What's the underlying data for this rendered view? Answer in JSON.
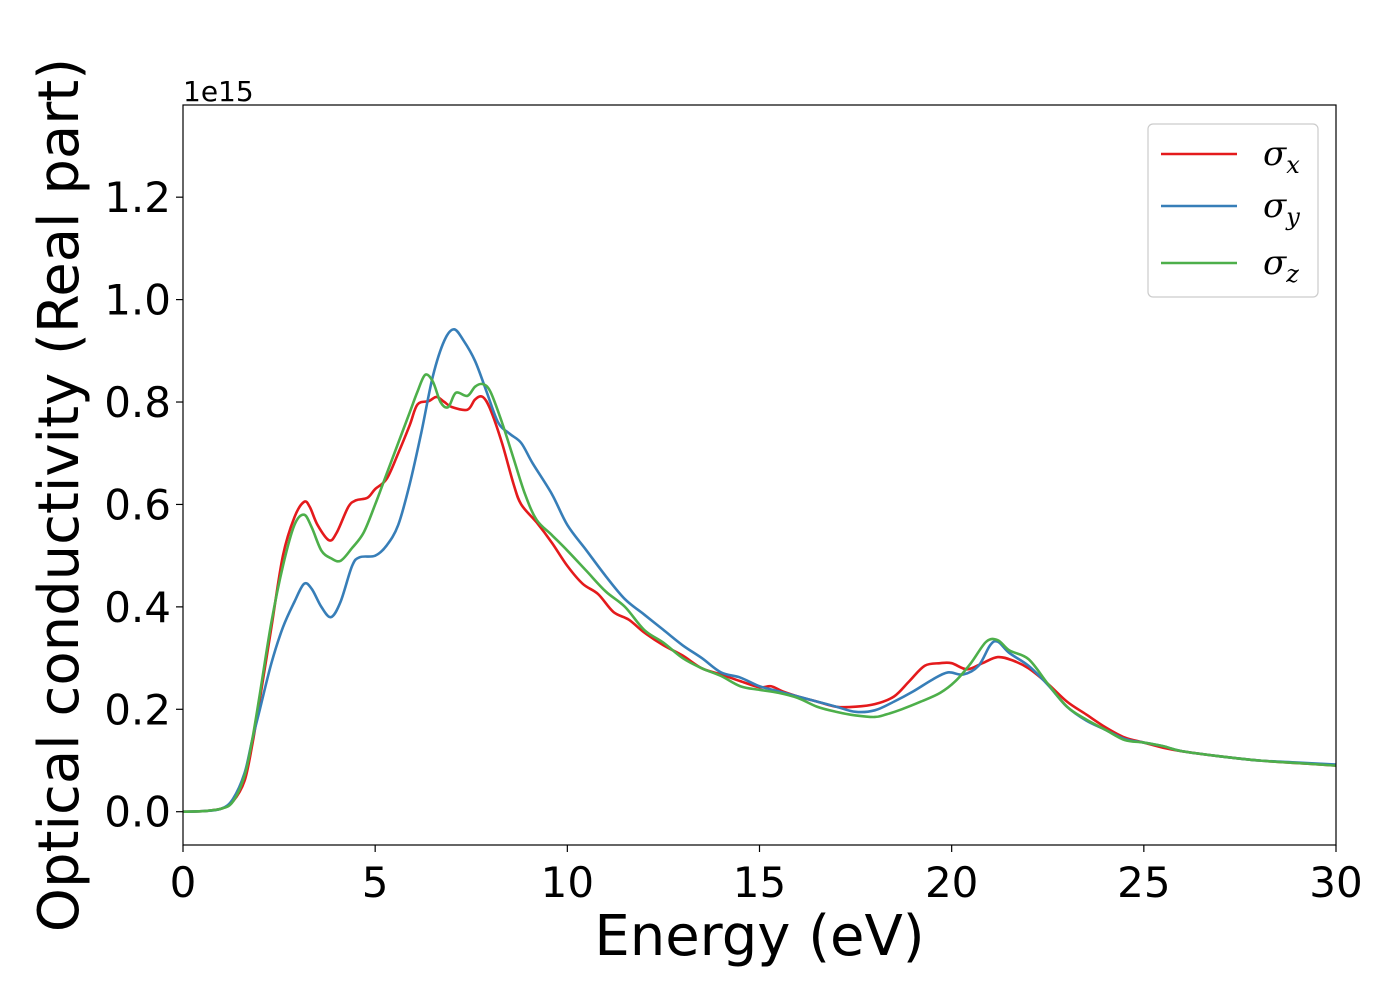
{
  "chart_data": {
    "type": "line",
    "xlabel": "Energy (eV)",
    "ylabel": "Optical conductivity (Real part)",
    "offset_text": "1e15",
    "xlim": [
      0,
      30
    ],
    "ylim": [
      -0.065,
      1.38
    ],
    "xticks": [
      0,
      5,
      10,
      15,
      20,
      25,
      30
    ],
    "xtick_labels": [
      "0",
      "5",
      "10",
      "15",
      "20",
      "25",
      "30"
    ],
    "yticks": [
      0.0,
      0.2,
      0.4,
      0.6,
      0.8,
      1.0,
      1.2
    ],
    "ytick_labels": [
      "0.0",
      "0.2",
      "0.4",
      "0.6",
      "0.8",
      "1.0",
      "1.2"
    ],
    "grid": false,
    "legend_position": "top-right",
    "series": [
      {
        "name": "σx",
        "legend_symbol": "σ",
        "legend_sub": "x",
        "color": "#e41a1c",
        "points": [
          [
            0,
            0
          ],
          [
            0.5,
            0.001
          ],
          [
            1.0,
            0.006
          ],
          [
            1.3,
            0.02
          ],
          [
            1.6,
            0.06
          ],
          [
            1.8,
            0.13
          ],
          [
            2.0,
            0.22
          ],
          [
            2.3,
            0.36
          ],
          [
            2.6,
            0.5
          ],
          [
            2.9,
            0.575
          ],
          [
            3.15,
            0.605
          ],
          [
            3.3,
            0.595
          ],
          [
            3.5,
            0.56
          ],
          [
            3.8,
            0.53
          ],
          [
            4.0,
            0.545
          ],
          [
            4.3,
            0.595
          ],
          [
            4.5,
            0.608
          ],
          [
            4.8,
            0.613
          ],
          [
            5.0,
            0.63
          ],
          [
            5.3,
            0.65
          ],
          [
            5.6,
            0.7
          ],
          [
            5.9,
            0.755
          ],
          [
            6.1,
            0.795
          ],
          [
            6.4,
            0.802
          ],
          [
            6.6,
            0.81
          ],
          [
            6.8,
            0.8
          ],
          [
            7.0,
            0.79
          ],
          [
            7.4,
            0.785
          ],
          [
            7.6,
            0.805
          ],
          [
            7.8,
            0.81
          ],
          [
            8.0,
            0.785
          ],
          [
            8.3,
            0.72
          ],
          [
            8.6,
            0.64
          ],
          [
            8.8,
            0.6
          ],
          [
            9.2,
            0.565
          ],
          [
            9.6,
            0.525
          ],
          [
            10.0,
            0.48
          ],
          [
            10.4,
            0.445
          ],
          [
            10.8,
            0.425
          ],
          [
            11.2,
            0.39
          ],
          [
            11.6,
            0.375
          ],
          [
            12.0,
            0.35
          ],
          [
            12.5,
            0.325
          ],
          [
            13.0,
            0.305
          ],
          [
            13.5,
            0.28
          ],
          [
            14.0,
            0.268
          ],
          [
            14.5,
            0.255
          ],
          [
            15.0,
            0.243
          ],
          [
            15.3,
            0.245
          ],
          [
            15.6,
            0.235
          ],
          [
            16.0,
            0.225
          ],
          [
            16.5,
            0.215
          ],
          [
            17.0,
            0.205
          ],
          [
            17.5,
            0.205
          ],
          [
            18.0,
            0.21
          ],
          [
            18.5,
            0.225
          ],
          [
            18.9,
            0.255
          ],
          [
            19.3,
            0.285
          ],
          [
            19.7,
            0.29
          ],
          [
            20.0,
            0.29
          ],
          [
            20.4,
            0.278
          ],
          [
            20.8,
            0.29
          ],
          [
            21.2,
            0.302
          ],
          [
            21.6,
            0.295
          ],
          [
            22.0,
            0.28
          ],
          [
            22.5,
            0.25
          ],
          [
            23.0,
            0.215
          ],
          [
            23.5,
            0.19
          ],
          [
            24.0,
            0.165
          ],
          [
            24.5,
            0.145
          ],
          [
            25.0,
            0.135
          ],
          [
            25.5,
            0.125
          ],
          [
            26.0,
            0.118
          ],
          [
            27.0,
            0.108
          ],
          [
            28.0,
            0.1
          ],
          [
            29.0,
            0.095
          ],
          [
            30.0,
            0.09
          ]
        ]
      },
      {
        "name": "σy",
        "legend_symbol": "σ",
        "legend_sub": "y",
        "color": "#377eb8",
        "points": [
          [
            0,
            0
          ],
          [
            0.5,
            0.001
          ],
          [
            1.0,
            0.006
          ],
          [
            1.3,
            0.025
          ],
          [
            1.6,
            0.075
          ],
          [
            1.8,
            0.14
          ],
          [
            2.0,
            0.2
          ],
          [
            2.3,
            0.29
          ],
          [
            2.6,
            0.36
          ],
          [
            2.9,
            0.41
          ],
          [
            3.15,
            0.445
          ],
          [
            3.35,
            0.435
          ],
          [
            3.6,
            0.4
          ],
          [
            3.85,
            0.38
          ],
          [
            4.1,
            0.41
          ],
          [
            4.4,
            0.48
          ],
          [
            4.6,
            0.497
          ],
          [
            5.0,
            0.5
          ],
          [
            5.3,
            0.52
          ],
          [
            5.6,
            0.56
          ],
          [
            5.9,
            0.64
          ],
          [
            6.2,
            0.74
          ],
          [
            6.5,
            0.85
          ],
          [
            6.8,
            0.92
          ],
          [
            7.05,
            0.942
          ],
          [
            7.3,
            0.92
          ],
          [
            7.6,
            0.88
          ],
          [
            7.9,
            0.82
          ],
          [
            8.2,
            0.76
          ],
          [
            8.5,
            0.738
          ],
          [
            8.8,
            0.72
          ],
          [
            9.1,
            0.68
          ],
          [
            9.6,
            0.62
          ],
          [
            10.0,
            0.56
          ],
          [
            10.5,
            0.51
          ],
          [
            11.0,
            0.46
          ],
          [
            11.5,
            0.415
          ],
          [
            12.0,
            0.385
          ],
          [
            12.5,
            0.355
          ],
          [
            13.0,
            0.325
          ],
          [
            13.5,
            0.3
          ],
          [
            14.0,
            0.272
          ],
          [
            14.5,
            0.262
          ],
          [
            15.0,
            0.245
          ],
          [
            15.5,
            0.235
          ],
          [
            16.0,
            0.225
          ],
          [
            16.5,
            0.215
          ],
          [
            17.0,
            0.205
          ],
          [
            17.5,
            0.195
          ],
          [
            18.0,
            0.198
          ],
          [
            18.5,
            0.215
          ],
          [
            19.0,
            0.235
          ],
          [
            19.5,
            0.258
          ],
          [
            19.9,
            0.272
          ],
          [
            20.3,
            0.268
          ],
          [
            20.7,
            0.285
          ],
          [
            21.0,
            0.325
          ],
          [
            21.2,
            0.332
          ],
          [
            21.5,
            0.31
          ],
          [
            22.0,
            0.285
          ],
          [
            22.5,
            0.248
          ],
          [
            23.0,
            0.205
          ],
          [
            23.5,
            0.178
          ],
          [
            24.0,
            0.16
          ],
          [
            24.5,
            0.142
          ],
          [
            25.0,
            0.135
          ],
          [
            25.5,
            0.128
          ],
          [
            26.0,
            0.118
          ],
          [
            27.0,
            0.108
          ],
          [
            28.0,
            0.1
          ],
          [
            29.0,
            0.096
          ],
          [
            30.0,
            0.092
          ]
        ]
      },
      {
        "name": "σz",
        "legend_symbol": "σ",
        "legend_sub": "z",
        "color": "#4daf4a",
        "points": [
          [
            0,
            0
          ],
          [
            0.5,
            0.001
          ],
          [
            1.0,
            0.006
          ],
          [
            1.3,
            0.02
          ],
          [
            1.6,
            0.07
          ],
          [
            1.8,
            0.14
          ],
          [
            2.0,
            0.23
          ],
          [
            2.3,
            0.37
          ],
          [
            2.6,
            0.48
          ],
          [
            2.9,
            0.56
          ],
          [
            3.15,
            0.58
          ],
          [
            3.35,
            0.555
          ],
          [
            3.6,
            0.51
          ],
          [
            3.85,
            0.495
          ],
          [
            4.1,
            0.49
          ],
          [
            4.4,
            0.515
          ],
          [
            4.7,
            0.545
          ],
          [
            5.0,
            0.6
          ],
          [
            5.3,
            0.66
          ],
          [
            5.6,
            0.72
          ],
          [
            5.9,
            0.78
          ],
          [
            6.1,
            0.82
          ],
          [
            6.3,
            0.853
          ],
          [
            6.5,
            0.84
          ],
          [
            6.7,
            0.8
          ],
          [
            6.9,
            0.79
          ],
          [
            7.1,
            0.818
          ],
          [
            7.4,
            0.812
          ],
          [
            7.6,
            0.83
          ],
          [
            7.8,
            0.835
          ],
          [
            8.0,
            0.82
          ],
          [
            8.3,
            0.76
          ],
          [
            8.6,
            0.69
          ],
          [
            8.9,
            0.62
          ],
          [
            9.2,
            0.57
          ],
          [
            9.6,
            0.54
          ],
          [
            10.0,
            0.51
          ],
          [
            10.5,
            0.47
          ],
          [
            11.0,
            0.43
          ],
          [
            11.5,
            0.4
          ],
          [
            12.0,
            0.355
          ],
          [
            12.5,
            0.33
          ],
          [
            13.0,
            0.3
          ],
          [
            13.5,
            0.28
          ],
          [
            14.0,
            0.265
          ],
          [
            14.5,
            0.245
          ],
          [
            15.0,
            0.238
          ],
          [
            15.5,
            0.232
          ],
          [
            16.0,
            0.222
          ],
          [
            16.5,
            0.205
          ],
          [
            17.0,
            0.195
          ],
          [
            17.5,
            0.188
          ],
          [
            18.0,
            0.185
          ],
          [
            18.3,
            0.19
          ],
          [
            18.7,
            0.2
          ],
          [
            19.2,
            0.215
          ],
          [
            19.7,
            0.232
          ],
          [
            20.1,
            0.255
          ],
          [
            20.5,
            0.29
          ],
          [
            20.9,
            0.332
          ],
          [
            21.2,
            0.335
          ],
          [
            21.5,
            0.315
          ],
          [
            22.0,
            0.298
          ],
          [
            22.5,
            0.25
          ],
          [
            23.0,
            0.205
          ],
          [
            23.5,
            0.18
          ],
          [
            24.0,
            0.16
          ],
          [
            24.5,
            0.14
          ],
          [
            25.0,
            0.135
          ],
          [
            25.5,
            0.128
          ],
          [
            26.0,
            0.118
          ],
          [
            27.0,
            0.108
          ],
          [
            28.0,
            0.1
          ],
          [
            29.0,
            0.095
          ],
          [
            30.0,
            0.09
          ]
        ]
      }
    ]
  }
}
